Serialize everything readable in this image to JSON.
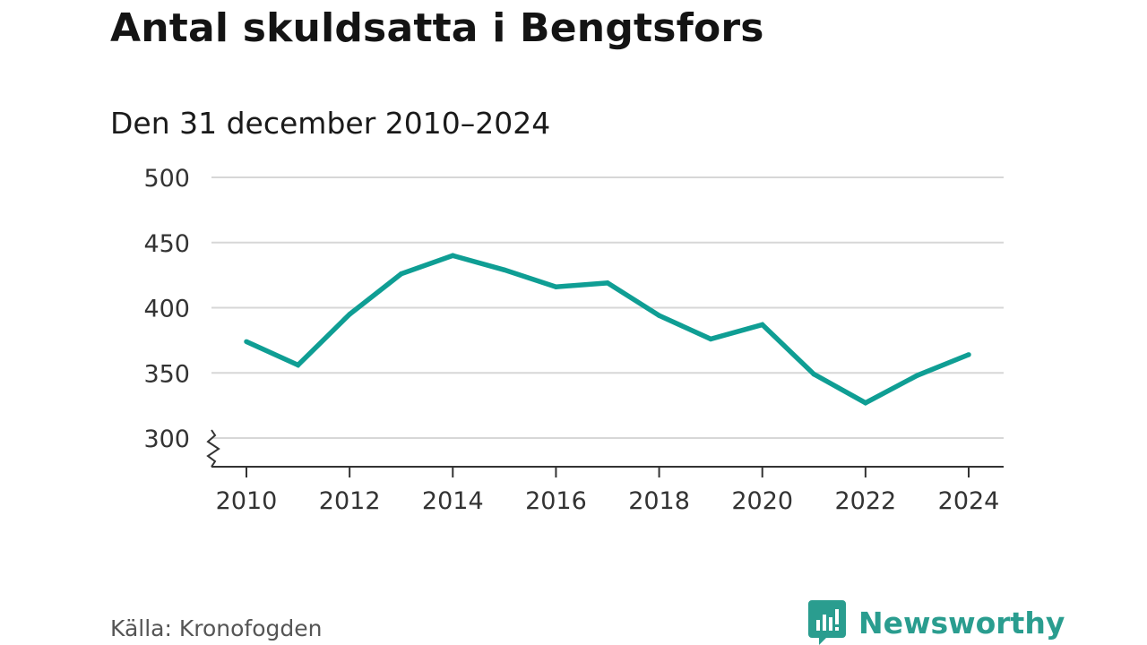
{
  "colors": {
    "line": "#0f9e94",
    "grid": "#d7d7d7",
    "axis": "#333333",
    "brand": "#2a9d8f"
  },
  "chart_data": {
    "type": "line",
    "title": "Antal skuldsatta i Bengtsfors",
    "subtitle": "Den 31 december 2010–2024",
    "xlabel": "",
    "ylabel": "",
    "x": [
      2010,
      2011,
      2012,
      2013,
      2014,
      2015,
      2016,
      2017,
      2018,
      2019,
      2020,
      2021,
      2022,
      2023,
      2024
    ],
    "series": [
      {
        "name": "Antal skuldsatta",
        "values": [
          374,
          356,
          395,
          426,
          440,
          429,
          416,
          419,
          394,
          376,
          387,
          349,
          327,
          348,
          364
        ]
      }
    ],
    "ylim": [
      300,
      500
    ],
    "yticks": [
      300,
      350,
      400,
      450,
      500
    ],
    "xticks": [
      2010,
      2012,
      2014,
      2016,
      2018,
      2020,
      2022,
      2024
    ],
    "axis_break": true,
    "grid": true
  },
  "footer": {
    "source": "Källa: Kronofogden",
    "brand": "Newsworthy",
    "brand_icon": "newsworthy-logo-icon"
  }
}
